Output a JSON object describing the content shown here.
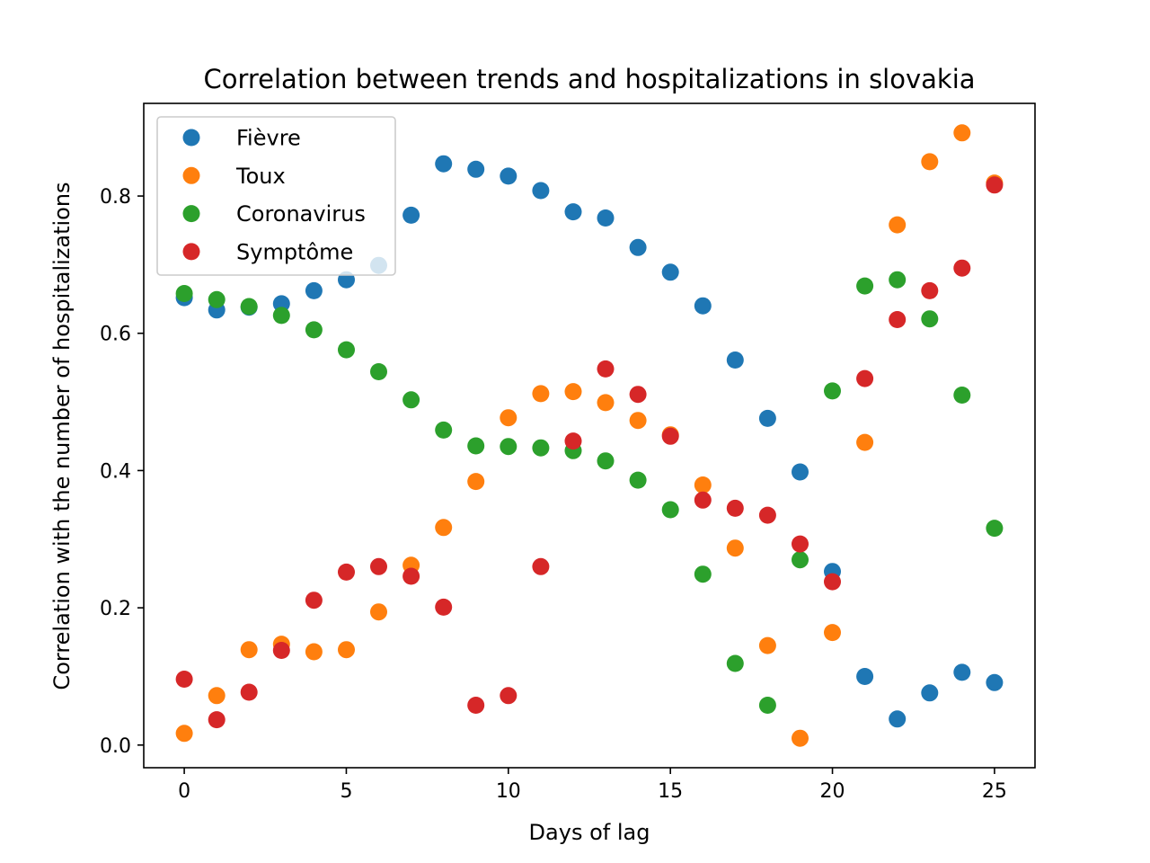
{
  "chart_data": {
    "type": "scatter",
    "title": "Correlation between trends and hospitalizations in slovakia",
    "xlabel": "Days of lag",
    "ylabel": "Correlation with the number of hospitalizations",
    "xlim": [
      -1.25,
      26.25
    ],
    "ylim": [
      -0.033,
      0.935
    ],
    "x_ticks": [
      0,
      5,
      10,
      15,
      20,
      25
    ],
    "y_ticks": [
      0.0,
      0.2,
      0.4,
      0.6,
      0.8
    ],
    "x_tick_labels": [
      "0",
      "5",
      "10",
      "15",
      "20",
      "25"
    ],
    "y_tick_labels": [
      "0.0",
      "0.2",
      "0.4",
      "0.6",
      "0.8"
    ],
    "grid": false,
    "legend_position": "top-left",
    "x": [
      0,
      1,
      2,
      3,
      4,
      5,
      6,
      7,
      8,
      9,
      10,
      11,
      12,
      13,
      14,
      15,
      16,
      17,
      18,
      19,
      20,
      21,
      22,
      23,
      24,
      25
    ],
    "series": [
      {
        "name": "Fièvre",
        "color": "#1f77b4",
        "values": [
          0.652,
          0.634,
          0.638,
          0.643,
          0.662,
          0.678,
          0.699,
          0.772,
          0.847,
          0.839,
          0.829,
          0.808,
          0.777,
          0.768,
          0.725,
          0.689,
          0.64,
          0.561,
          0.476,
          0.398,
          0.253,
          0.1,
          0.038,
          0.076,
          0.106,
          0.091
        ]
      },
      {
        "name": "Toux",
        "color": "#ff7f0e",
        "values": [
          0.017,
          0.072,
          0.139,
          0.147,
          0.136,
          0.139,
          0.194,
          0.262,
          0.317,
          0.384,
          0.477,
          0.512,
          0.515,
          0.499,
          0.473,
          0.452,
          0.379,
          0.287,
          0.145,
          0.01,
          0.164,
          0.441,
          0.758,
          0.85,
          0.892,
          0.819
        ]
      },
      {
        "name": "Coronavirus",
        "color": "#2ca02c",
        "values": [
          0.658,
          0.649,
          0.639,
          0.626,
          0.605,
          0.576,
          0.544,
          0.503,
          0.459,
          0.436,
          0.435,
          0.433,
          0.429,
          0.414,
          0.386,
          0.343,
          0.249,
          0.119,
          0.058,
          0.27,
          0.516,
          0.669,
          0.678,
          0.621,
          0.51,
          0.316
        ]
      },
      {
        "name": "Symptôme",
        "color": "#d62728",
        "values": [
          0.096,
          0.037,
          0.077,
          0.138,
          0.211,
          0.252,
          0.26,
          0.246,
          0.201,
          0.058,
          0.072,
          0.26,
          0.443,
          0.548,
          0.511,
          0.45,
          0.357,
          0.345,
          0.335,
          0.293,
          0.238,
          0.534,
          0.62,
          0.662,
          0.695,
          0.816
        ]
      }
    ]
  }
}
